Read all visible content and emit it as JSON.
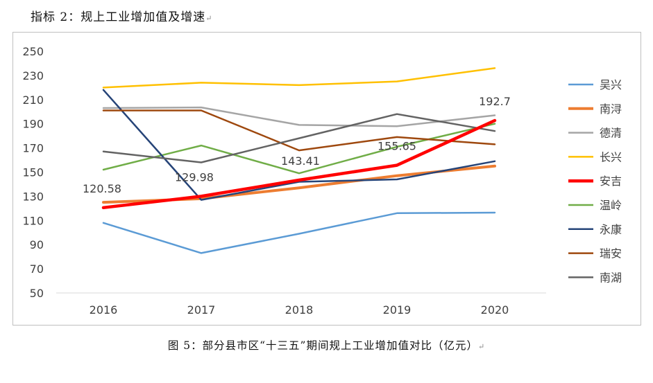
{
  "heading": "指标 2：规上工业增加值及增速",
  "caption": "图 5：部分县市区“十三五”期间规上工业增加值对比（亿元）",
  "para_mark": "↵",
  "chart_data": {
    "type": "line",
    "title": "",
    "xlabel": "",
    "ylabel": "",
    "categories": [
      "2016",
      "2017",
      "2018",
      "2019",
      "2020"
    ],
    "ylim": [
      50,
      250
    ],
    "yticks": [
      50,
      70,
      90,
      110,
      130,
      150,
      170,
      190,
      210,
      230,
      250
    ],
    "grid": false,
    "legend": "right",
    "series": [
      {
        "name": "吴兴",
        "color": "#5b9bd5",
        "width": 2.5,
        "values": [
          108,
          83,
          99,
          116,
          116.5
        ]
      },
      {
        "name": "南浔",
        "color": "#ed7d31",
        "width": 4,
        "values": [
          125,
          128,
          137,
          147,
          155
        ]
      },
      {
        "name": "德清",
        "color": "#a5a5a5",
        "width": 2.5,
        "values": [
          203,
          203.5,
          189,
          188,
          197
        ]
      },
      {
        "name": "长兴",
        "color": "#ffc000",
        "width": 2.5,
        "values": [
          220,
          224,
          222,
          225,
          236
        ]
      },
      {
        "name": "安吉",
        "color": "#ff0000",
        "width": 4.5,
        "values": [
          120.58,
          129.98,
          143.41,
          155.65,
          192.7
        ]
      },
      {
        "name": "温岭",
        "color": "#70ad47",
        "width": 2.5,
        "values": [
          152,
          172,
          149,
          171,
          190
        ]
      },
      {
        "name": "永康",
        "color": "#264478",
        "width": 2.5,
        "values": [
          218,
          127,
          142,
          144,
          159
        ]
      },
      {
        "name": "瑞安",
        "color": "#9e480e",
        "width": 2.5,
        "values": [
          201,
          201,
          168,
          179,
          173
        ]
      },
      {
        "name": "南湖",
        "color": "#636363",
        "width": 2.5,
        "values": [
          167,
          158,
          178,
          198,
          184
        ]
      }
    ],
    "data_labels": [
      {
        "series": "安吉",
        "index": 0,
        "text": "120.58"
      },
      {
        "series": "安吉",
        "index": 1,
        "text": "129.98"
      },
      {
        "series": "安吉",
        "index": 2,
        "text": "143.41"
      },
      {
        "series": "安吉",
        "index": 3,
        "text": "155.65"
      },
      {
        "series": "安吉",
        "index": 4,
        "text": "192.7"
      }
    ]
  }
}
